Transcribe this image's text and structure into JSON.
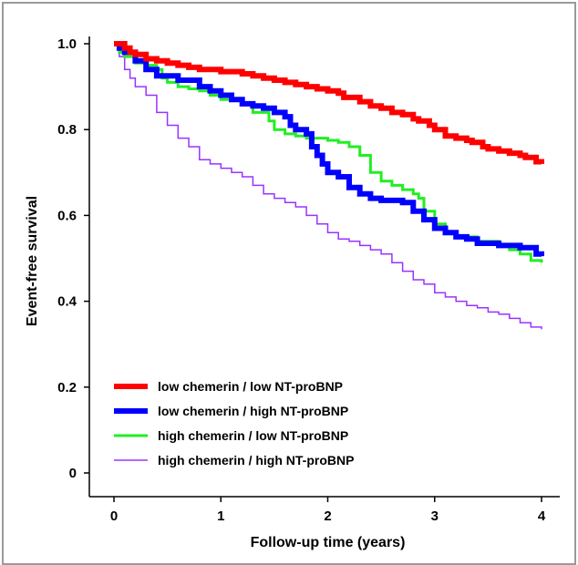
{
  "chart_data": {
    "type": "line",
    "step": true,
    "xlabel": "Follow-up time (years)",
    "ylabel": "Event-free survival",
    "xlim": [
      0,
      4
    ],
    "ylim": [
      0,
      1.0
    ],
    "xticks": [
      "0",
      "1",
      "2",
      "3",
      "4"
    ],
    "yticks": [
      "0",
      "0.2",
      "0.4",
      "0.6",
      "0.8",
      "1.0"
    ],
    "grid": false,
    "legend_position": "bottom-left",
    "series": [
      {
        "name": "low chemerin / low NT-proBNP",
        "color": "#ff0000",
        "weight": "thick",
        "x": [
          0,
          0.1,
          0.15,
          0.2,
          0.3,
          0.4,
          0.5,
          0.6,
          0.7,
          0.8,
          1.0,
          1.2,
          1.3,
          1.4,
          1.5,
          1.6,
          1.7,
          1.8,
          1.9,
          2.0,
          2.1,
          2.15,
          2.3,
          2.4,
          2.5,
          2.6,
          2.7,
          2.8,
          2.85,
          2.95,
          3.0,
          3.1,
          3.2,
          3.3,
          3.35,
          3.45,
          3.5,
          3.6,
          3.7,
          3.8,
          3.85,
          3.95,
          4.0
        ],
        "y": [
          1.0,
          0.99,
          0.98,
          0.975,
          0.965,
          0.96,
          0.955,
          0.95,
          0.945,
          0.94,
          0.935,
          0.93,
          0.925,
          0.92,
          0.915,
          0.91,
          0.905,
          0.9,
          0.895,
          0.89,
          0.885,
          0.875,
          0.865,
          0.855,
          0.85,
          0.84,
          0.835,
          0.825,
          0.82,
          0.81,
          0.8,
          0.785,
          0.78,
          0.775,
          0.77,
          0.76,
          0.755,
          0.75,
          0.745,
          0.74,
          0.735,
          0.725,
          0.72
        ]
      },
      {
        "name": "low chemerin / high NT-proBNP",
        "color": "#0000ff",
        "weight": "thick",
        "x": [
          0,
          0.05,
          0.1,
          0.2,
          0.3,
          0.4,
          0.6,
          0.8,
          0.9,
          1.0,
          1.1,
          1.2,
          1.3,
          1.4,
          1.5,
          1.6,
          1.65,
          1.7,
          1.8,
          1.85,
          1.9,
          1.95,
          2.0,
          2.1,
          2.2,
          2.3,
          2.4,
          2.5,
          2.6,
          2.7,
          2.8,
          2.9,
          3.0,
          3.1,
          3.2,
          3.3,
          3.4,
          3.6,
          3.8,
          3.95,
          4.0
        ],
        "y": [
          1.0,
          0.99,
          0.98,
          0.96,
          0.94,
          0.925,
          0.915,
          0.9,
          0.89,
          0.88,
          0.87,
          0.86,
          0.855,
          0.85,
          0.84,
          0.83,
          0.81,
          0.8,
          0.79,
          0.76,
          0.74,
          0.72,
          0.7,
          0.69,
          0.665,
          0.65,
          0.64,
          0.635,
          0.635,
          0.63,
          0.61,
          0.59,
          0.57,
          0.56,
          0.55,
          0.545,
          0.535,
          0.53,
          0.525,
          0.51,
          0.505
        ]
      },
      {
        "name": "high chemerin / low NT-proBNP",
        "color": "#22ee22",
        "weight": "medium",
        "x": [
          0,
          0.05,
          0.1,
          0.2,
          0.3,
          0.4,
          0.45,
          0.5,
          0.6,
          0.7,
          0.8,
          0.9,
          1.0,
          1.2,
          1.3,
          1.45,
          1.5,
          1.6,
          1.7,
          1.8,
          2.0,
          2.1,
          2.2,
          2.3,
          2.4,
          2.5,
          2.6,
          2.7,
          2.8,
          2.85,
          2.9,
          3.0,
          3.1,
          3.2,
          3.4,
          3.6,
          3.7,
          3.8,
          3.9,
          4.0
        ],
        "y": [
          1.0,
          0.98,
          0.97,
          0.955,
          0.95,
          0.94,
          0.92,
          0.91,
          0.9,
          0.895,
          0.89,
          0.88,
          0.87,
          0.86,
          0.84,
          0.82,
          0.8,
          0.79,
          0.785,
          0.78,
          0.775,
          0.77,
          0.76,
          0.74,
          0.7,
          0.68,
          0.67,
          0.66,
          0.65,
          0.64,
          0.61,
          0.58,
          0.56,
          0.55,
          0.54,
          0.53,
          0.52,
          0.51,
          0.495,
          0.49
        ]
      },
      {
        "name": "high chemerin / high NT-proBNP",
        "color": "#9933ff",
        "weight": "thin",
        "x": [
          0,
          0.05,
          0.1,
          0.15,
          0.2,
          0.3,
          0.4,
          0.5,
          0.6,
          0.7,
          0.8,
          0.9,
          1.0,
          1.1,
          1.2,
          1.3,
          1.4,
          1.5,
          1.6,
          1.7,
          1.8,
          1.9,
          2.0,
          2.1,
          2.2,
          2.3,
          2.4,
          2.5,
          2.6,
          2.7,
          2.8,
          2.9,
          3.0,
          3.1,
          3.2,
          3.3,
          3.4,
          3.5,
          3.6,
          3.7,
          3.8,
          3.9,
          4.0
        ],
        "y": [
          1.0,
          0.97,
          0.94,
          0.92,
          0.9,
          0.88,
          0.84,
          0.81,
          0.78,
          0.76,
          0.73,
          0.72,
          0.71,
          0.7,
          0.69,
          0.67,
          0.65,
          0.64,
          0.63,
          0.62,
          0.6,
          0.58,
          0.56,
          0.545,
          0.54,
          0.53,
          0.52,
          0.51,
          0.49,
          0.47,
          0.45,
          0.44,
          0.42,
          0.41,
          0.4,
          0.39,
          0.385,
          0.375,
          0.37,
          0.36,
          0.35,
          0.34,
          0.335
        ]
      }
    ]
  }
}
